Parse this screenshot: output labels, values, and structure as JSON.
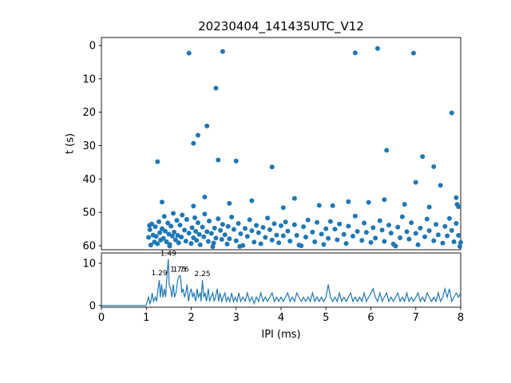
{
  "figure": {
    "title": "20230404_141435UTC_V12",
    "xlabel": "IPI (ms)",
    "ylabel_top": "t (s)"
  },
  "chart_data": [
    {
      "type": "scatter",
      "title": "20230404_141435UTC_V12",
      "xlabel": "IPI (ms)",
      "ylabel": "t (s)",
      "xlim": [
        0,
        8
      ],
      "ylim": [
        -2.4,
        61.2
      ],
      "y_inverted": true,
      "grid": false,
      "marker_color": "#1f77b4",
      "x_ticks": [
        0,
        1,
        2,
        3,
        4,
        5,
        6,
        7,
        8
      ],
      "y_ticks": [
        0,
        10,
        20,
        30,
        40,
        50,
        60
      ],
      "points": [
        [
          1.95,
          2.3
        ],
        [
          2.7,
          1.8
        ],
        [
          5.65,
          2.2
        ],
        [
          6.15,
          0.9
        ],
        [
          6.95,
          2.3
        ],
        [
          2.55,
          12.8
        ],
        [
          7.8,
          20.2
        ],
        [
          2.35,
          24.1
        ],
        [
          2.15,
          26.9
        ],
        [
          2.05,
          29.3
        ],
        [
          1.25,
          34.8
        ],
        [
          2.6,
          34.3
        ],
        [
          3.0,
          34.6
        ],
        [
          6.35,
          31.4
        ],
        [
          7.15,
          33.3
        ],
        [
          7.4,
          36.3
        ],
        [
          3.8,
          36.4
        ],
        [
          7.0,
          41.0
        ],
        [
          7.55,
          41.9
        ],
        [
          4.3,
          45.8
        ],
        [
          1.35,
          46.9
        ],
        [
          2.3,
          45.4
        ],
        [
          2.85,
          47.3
        ],
        [
          6.3,
          46.2
        ],
        [
          7.9,
          45.6
        ],
        [
          5.5,
          46.8
        ],
        [
          3.35,
          46.5
        ],
        [
          4.85,
          47.9
        ],
        [
          5.95,
          47.0
        ],
        [
          6.75,
          47.6
        ],
        [
          7.3,
          48.4
        ],
        [
          2.05,
          48.1
        ],
        [
          4.05,
          48.6
        ],
        [
          7.95,
          48.3
        ],
        [
          7.92,
          47.6
        ],
        [
          5.15,
          48.0
        ],
        [
          1.05,
          57.5
        ],
        [
          1.07,
          53.9
        ],
        [
          1.08,
          55.2
        ],
        [
          1.1,
          59.8
        ],
        [
          1.12,
          53.5
        ],
        [
          1.15,
          56.8
        ],
        [
          1.18,
          58.9
        ],
        [
          1.2,
          54.3
        ],
        [
          1.22,
          57.2
        ],
        [
          1.25,
          59.4
        ],
        [
          1.28,
          52.8
        ],
        [
          1.3,
          56.1
        ],
        [
          1.32,
          58.3
        ],
        [
          1.35,
          54.9
        ],
        [
          1.38,
          57.8
        ],
        [
          1.4,
          51.2
        ],
        [
          1.42,
          55.6
        ],
        [
          1.45,
          58.8
        ],
        [
          1.48,
          53.2
        ],
        [
          1.5,
          56.5
        ],
        [
          1.52,
          59.6
        ],
        [
          1.55,
          54.1
        ],
        [
          1.58,
          57.1
        ],
        [
          1.6,
          50.3
        ],
        [
          1.62,
          55.9
        ],
        [
          1.65,
          58.2
        ],
        [
          1.68,
          52.4
        ],
        [
          1.7,
          56.9
        ],
        [
          1.72,
          59.1
        ],
        [
          1.75,
          53.8
        ],
        [
          1.78,
          57.4
        ],
        [
          1.8,
          50.8
        ],
        [
          1.85,
          55.3
        ],
        [
          1.88,
          58.6
        ],
        [
          1.9,
          52.1
        ],
        [
          1.95,
          56.2
        ],
        [
          2.0,
          59.3
        ],
        [
          2.02,
          54.6
        ],
        [
          2.05,
          57.6
        ],
        [
          2.08,
          51.6
        ],
        [
          2.1,
          55.7
        ],
        [
          2.12,
          58.4
        ],
        [
          2.15,
          53.1
        ],
        [
          2.18,
          56.6
        ],
        [
          2.2,
          59.7
        ],
        [
          2.25,
          54.4
        ],
        [
          2.28,
          57.3
        ],
        [
          2.3,
          50.5
        ],
        [
          2.35,
          55.8
        ],
        [
          2.38,
          58.7
        ],
        [
          2.4,
          52.6
        ],
        [
          2.45,
          56.3
        ],
        [
          2.5,
          59.2
        ],
        [
          2.52,
          54.7
        ],
        [
          2.55,
          57.7
        ],
        [
          2.6,
          51.9
        ],
        [
          2.65,
          55.4
        ],
        [
          2.68,
          58.1
        ],
        [
          2.7,
          53.6
        ],
        [
          2.75,
          56.7
        ],
        [
          2.8,
          59.5
        ],
        [
          2.82,
          54.2
        ],
        [
          2.85,
          57.9
        ],
        [
          2.9,
          51.4
        ],
        [
          2.95,
          55.1
        ],
        [
          3.0,
          58.5
        ],
        [
          3.05,
          53.3
        ],
        [
          3.1,
          56.4
        ],
        [
          3.15,
          59.9
        ],
        [
          3.2,
          54.8
        ],
        [
          3.25,
          57.2
        ],
        [
          3.3,
          52.2
        ],
        [
          3.35,
          55.5
        ],
        [
          3.4,
          58.9
        ],
        [
          3.45,
          53.9
        ],
        [
          3.5,
          56.1
        ],
        [
          3.55,
          59.4
        ],
        [
          3.6,
          54.5
        ],
        [
          3.65,
          57.5
        ],
        [
          3.7,
          51.7
        ],
        [
          3.75,
          55.2
        ],
        [
          3.8,
          58.3
        ],
        [
          3.85,
          53.4
        ],
        [
          3.9,
          56.8
        ],
        [
          3.95,
          59.1
        ],
        [
          4.0,
          54.0
        ],
        [
          4.05,
          57.0
        ],
        [
          4.1,
          52.9
        ],
        [
          4.15,
          55.6
        ],
        [
          4.2,
          58.6
        ],
        [
          4.3,
          53.7
        ],
        [
          4.35,
          56.9
        ],
        [
          4.4,
          59.8
        ],
        [
          4.5,
          54.3
        ],
        [
          4.55,
          57.4
        ],
        [
          4.6,
          52.3
        ],
        [
          4.7,
          55.9
        ],
        [
          4.75,
          58.8
        ],
        [
          4.8,
          53.0
        ],
        [
          4.9,
          56.5
        ],
        [
          4.95,
          59.6
        ],
        [
          5.0,
          54.9
        ],
        [
          5.05,
          57.8
        ],
        [
          5.1,
          52.7
        ],
        [
          5.2,
          55.0
        ],
        [
          5.25,
          58.2
        ],
        [
          5.3,
          53.5
        ],
        [
          5.4,
          56.6
        ],
        [
          5.45,
          59.3
        ],
        [
          5.5,
          54.1
        ],
        [
          5.6,
          57.1
        ],
        [
          5.65,
          51.1
        ],
        [
          5.7,
          55.7
        ],
        [
          5.8,
          58.4
        ],
        [
          5.85,
          53.2
        ],
        [
          5.9,
          56.0
        ],
        [
          6.0,
          59.0
        ],
        [
          6.05,
          54.6
        ],
        [
          6.1,
          57.7
        ],
        [
          6.2,
          52.5
        ],
        [
          6.25,
          55.3
        ],
        [
          6.3,
          58.7
        ],
        [
          6.4,
          53.8
        ],
        [
          6.45,
          56.2
        ],
        [
          6.5,
          59.5
        ],
        [
          6.6,
          54.4
        ],
        [
          6.65,
          57.6
        ],
        [
          6.7,
          51.3
        ],
        [
          6.8,
          55.8
        ],
        [
          6.85,
          58.0
        ],
        [
          6.9,
          53.1
        ],
        [
          7.0,
          56.3
        ],
        [
          7.05,
          59.7
        ],
        [
          7.1,
          54.7
        ],
        [
          7.2,
          57.3
        ],
        [
          7.25,
          52.0
        ],
        [
          7.3,
          55.5
        ],
        [
          7.4,
          58.5
        ],
        [
          7.45,
          53.6
        ],
        [
          7.5,
          56.7
        ],
        [
          7.6,
          59.2
        ],
        [
          7.65,
          54.2
        ],
        [
          7.7,
          57.0
        ],
        [
          7.75,
          51.8
        ],
        [
          7.8,
          55.4
        ],
        [
          7.85,
          58.8
        ],
        [
          7.9,
          53.3
        ],
        [
          7.95,
          56.9
        ],
        [
          8.0,
          59.0
        ],
        [
          7.98,
          60.2
        ],
        [
          6.55,
          60.1
        ],
        [
          4.45,
          60.0
        ],
        [
          2.48,
          60.3
        ],
        [
          1.52,
          60.1
        ],
        [
          3.08,
          60.2
        ]
      ]
    },
    {
      "type": "line",
      "xlabel": "IPI (ms)",
      "xlim": [
        0,
        8
      ],
      "ylim": [
        0,
        12.5
      ],
      "grid": false,
      "line_color": "#1f77b4",
      "x_ticks": [
        0,
        1,
        2,
        3,
        4,
        5,
        6,
        7,
        8
      ],
      "y_ticks": [
        0,
        10
      ],
      "points": [
        [
          0,
          0
        ],
        [
          0.99,
          0
        ],
        [
          1.02,
          1
        ],
        [
          1.05,
          2
        ],
        [
          1.08,
          0.5
        ],
        [
          1.1,
          1
        ],
        [
          1.13,
          3
        ],
        [
          1.16,
          1
        ],
        [
          1.2,
          2
        ],
        [
          1.23,
          1
        ],
        [
          1.26,
          4
        ],
        [
          1.29,
          6
        ],
        [
          1.31,
          2
        ],
        [
          1.34,
          5
        ],
        [
          1.37,
          2
        ],
        [
          1.4,
          4
        ],
        [
          1.43,
          2
        ],
        [
          1.46,
          7
        ],
        [
          1.49,
          11
        ],
        [
          1.51,
          5
        ],
        [
          1.54,
          4
        ],
        [
          1.57,
          2
        ],
        [
          1.6,
          5
        ],
        [
          1.63,
          2
        ],
        [
          1.66,
          3
        ],
        [
          1.7,
          6
        ],
        [
          1.73,
          7
        ],
        [
          1.76,
          7
        ],
        [
          1.79,
          3
        ],
        [
          1.82,
          4
        ],
        [
          1.85,
          2
        ],
        [
          1.88,
          3
        ],
        [
          1.91,
          5
        ],
        [
          1.94,
          1
        ],
        [
          1.97,
          3
        ],
        [
          2.0,
          4
        ],
        [
          2.03,
          2
        ],
        [
          2.06,
          3
        ],
        [
          2.1,
          1
        ],
        [
          2.13,
          4
        ],
        [
          2.16,
          2
        ],
        [
          2.2,
          3
        ],
        [
          2.22,
          1
        ],
        [
          2.25,
          6
        ],
        [
          2.28,
          2
        ],
        [
          2.31,
          3
        ],
        [
          2.34,
          1
        ],
        [
          2.38,
          4
        ],
        [
          2.41,
          1
        ],
        [
          2.44,
          2
        ],
        [
          2.48,
          3
        ],
        [
          2.51,
          1
        ],
        [
          2.54,
          2
        ],
        [
          2.58,
          4
        ],
        [
          2.61,
          1
        ],
        [
          2.64,
          3
        ],
        [
          2.68,
          1
        ],
        [
          2.71,
          2
        ],
        [
          2.75,
          3
        ],
        [
          2.78,
          1
        ],
        [
          2.82,
          2
        ],
        [
          2.86,
          1
        ],
        [
          2.9,
          3
        ],
        [
          2.94,
          1
        ],
        [
          2.98,
          2
        ],
        [
          3.02,
          1
        ],
        [
          3.06,
          3
        ],
        [
          3.1,
          1
        ],
        [
          3.15,
          2
        ],
        [
          3.2,
          1
        ],
        [
          3.25,
          3
        ],
        [
          3.3,
          1
        ],
        [
          3.35,
          2
        ],
        [
          3.4,
          0.5
        ],
        [
          3.45,
          2
        ],
        [
          3.5,
          1
        ],
        [
          3.55,
          3
        ],
        [
          3.6,
          1
        ],
        [
          3.65,
          2
        ],
        [
          3.7,
          1
        ],
        [
          3.75,
          2
        ],
        [
          3.8,
          3
        ],
        [
          3.85,
          1
        ],
        [
          3.9,
          2
        ],
        [
          3.95,
          1
        ],
        [
          4.0,
          2
        ],
        [
          4.05,
          1
        ],
        [
          4.1,
          2
        ],
        [
          4.15,
          3
        ],
        [
          4.2,
          1
        ],
        [
          4.25,
          2
        ],
        [
          4.3,
          1
        ],
        [
          4.35,
          3
        ],
        [
          4.4,
          2
        ],
        [
          4.45,
          1
        ],
        [
          4.5,
          2
        ],
        [
          4.55,
          1
        ],
        [
          4.6,
          2
        ],
        [
          4.65,
          1
        ],
        [
          4.7,
          3
        ],
        [
          4.75,
          1
        ],
        [
          4.8,
          2
        ],
        [
          4.85,
          1
        ],
        [
          4.9,
          2
        ],
        [
          4.95,
          1
        ],
        [
          5.0,
          2
        ],
        [
          5.05,
          5
        ],
        [
          5.1,
          2
        ],
        [
          5.15,
          1
        ],
        [
          5.2,
          2
        ],
        [
          5.25,
          1
        ],
        [
          5.3,
          3
        ],
        [
          5.35,
          1
        ],
        [
          5.4,
          2
        ],
        [
          5.45,
          1
        ],
        [
          5.5,
          2
        ],
        [
          5.55,
          3
        ],
        [
          5.6,
          1
        ],
        [
          5.65,
          2
        ],
        [
          5.7,
          1
        ],
        [
          5.75,
          2
        ],
        [
          5.8,
          1
        ],
        [
          5.85,
          3
        ],
        [
          5.9,
          1
        ],
        [
          5.95,
          2
        ],
        [
          6.0,
          3
        ],
        [
          6.05,
          4
        ],
        [
          6.1,
          2
        ],
        [
          6.15,
          1
        ],
        [
          6.2,
          3
        ],
        [
          6.25,
          1
        ],
        [
          6.3,
          2
        ],
        [
          6.35,
          3
        ],
        [
          6.4,
          1
        ],
        [
          6.45,
          2
        ],
        [
          6.5,
          1
        ],
        [
          6.55,
          2
        ],
        [
          6.6,
          3
        ],
        [
          6.65,
          1
        ],
        [
          6.7,
          2
        ],
        [
          6.75,
          1
        ],
        [
          6.8,
          3
        ],
        [
          6.85,
          1
        ],
        [
          6.9,
          2
        ],
        [
          6.95,
          1
        ],
        [
          7.0,
          2
        ],
        [
          7.05,
          3
        ],
        [
          7.1,
          1
        ],
        [
          7.15,
          2
        ],
        [
          7.2,
          1
        ],
        [
          7.25,
          3
        ],
        [
          7.3,
          2
        ],
        [
          7.35,
          1
        ],
        [
          7.4,
          2
        ],
        [
          7.45,
          1
        ],
        [
          7.5,
          3
        ],
        [
          7.55,
          1
        ],
        [
          7.6,
          2
        ],
        [
          7.65,
          4
        ],
        [
          7.7,
          2
        ],
        [
          7.75,
          4
        ],
        [
          7.8,
          1
        ],
        [
          7.85,
          2
        ],
        [
          7.9,
          3
        ],
        [
          7.95,
          2
        ],
        [
          8.0,
          3
        ]
      ],
      "annotations": [
        {
          "text": "1.29",
          "x": 1.29,
          "y": 7.2
        },
        {
          "text": "1.49",
          "x": 1.49,
          "y": 11.8
        },
        {
          "text": "1.73",
          "x": 1.71,
          "y": 8.0
        },
        {
          "text": "1.76",
          "x": 1.77,
          "y": 8.0
        },
        {
          "text": "2.25",
          "x": 2.25,
          "y": 7.0
        }
      ]
    }
  ]
}
